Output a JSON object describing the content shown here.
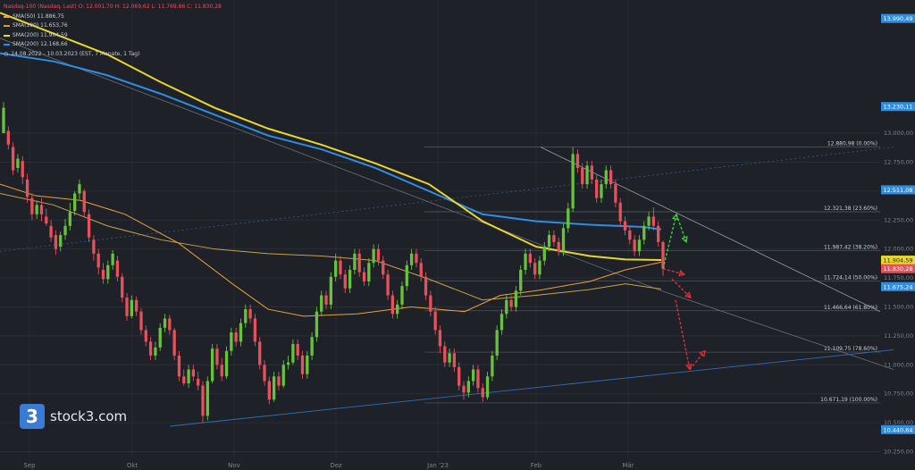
{
  "header": {
    "title": "Nasdaq-100 (Nasdaq, Last)  O: 12.001,70  H: 12.069,62  L: 11.769,86  C: 11.830,28",
    "legend": [
      {
        "label": "SMA(50)  11.886,75",
        "color": "#e9a23b"
      },
      {
        "label": "SMA(100)  11.653,76",
        "color": "#c8a24a"
      },
      {
        "label": "SMA(200)  11.904,59",
        "color": "#e8d72a"
      },
      {
        "label": "SMA(200)  12.168,66",
        "color": "#2f8de4"
      }
    ],
    "range": "24.08.2022 - 10.03.2023    (EST, 7 Monate, 1 Tag)"
  },
  "logo": {
    "mark": "3",
    "text": "stock3.com"
  },
  "chart_data": {
    "type": "candlestick",
    "x_ticks": [
      "Sep",
      "Okt",
      "Nov",
      "Dez",
      "Jan '23",
      "Feb",
      "Mär"
    ],
    "y_ticks": [
      "13.000,00",
      "12.750,00",
      "12.500,00",
      "12.250,00",
      "12.000,00",
      "11.750,00",
      "11.500,00",
      "11.250,00",
      "11.000,00",
      "10.750,00",
      "10.500,00",
      "10.250,00"
    ],
    "ylim": [
      10200,
      14150
    ],
    "price_labels": [
      {
        "text": "13.990,49",
        "value": 13990.49,
        "color": "#2f8de4"
      },
      {
        "text": "13.230,11",
        "value": 13230.11,
        "color": "#2f8de4"
      },
      {
        "text": "12.511,08",
        "value": 12511.08,
        "color": "#2f8de4"
      },
      {
        "text": "11.904,59",
        "value": 11904.59,
        "color": "#e8d72a"
      },
      {
        "text": "11.830,28",
        "value": 11830.28,
        "color": "#e9505b"
      },
      {
        "text": "11.675,24",
        "value": 11675.24,
        "color": "#2f8de4"
      },
      {
        "text": "10.440,64",
        "value": 10440.64,
        "color": "#2f8de4"
      }
    ],
    "fib_levels": [
      {
        "label": "12.880,98 (0.00%)",
        "value": 12880.98
      },
      {
        "label": "12.321,38 (23.60%)",
        "value": 12321.38
      },
      {
        "label": "11.987,42 (38.20%)",
        "value": 11987.42
      },
      {
        "label": "11.724,14 (50.00%)",
        "value": 11724.14
      },
      {
        "label": "11.466,64 (61.80%)",
        "value": 11466.64
      },
      {
        "label": "11.109,75 (78.60%)",
        "value": 11109.75
      },
      {
        "label": "10.671,19 (100.00%)",
        "value": 10671.19
      }
    ],
    "candles": [
      [
        13000,
        13220,
        13060,
        13270
      ],
      [
        13020,
        12900,
        13060,
        12860
      ],
      [
        12880,
        12680,
        12920,
        12640
      ],
      [
        12700,
        12780,
        12820,
        12660
      ],
      [
        12760,
        12620,
        12800,
        12560
      ],
      [
        12600,
        12450,
        12650,
        12400
      ],
      [
        12440,
        12300,
        12480,
        12250
      ],
      [
        12300,
        12380,
        12420,
        12260
      ],
      [
        12380,
        12300,
        12440,
        12240
      ],
      [
        12280,
        12220,
        12350,
        12200
      ],
      [
        12200,
        12100,
        12250,
        12060
      ],
      [
        12120,
        12000,
        12160,
        11950
      ],
      [
        12020,
        12120,
        12150,
        11980
      ],
      [
        12120,
        12200,
        12260,
        12080
      ],
      [
        12200,
        12320,
        12400,
        12160
      ],
      [
        12330,
        12480,
        12500,
        12290
      ],
      [
        12480,
        12560,
        12600,
        12430
      ],
      [
        12500,
        12320,
        12520,
        12280
      ],
      [
        12300,
        12100,
        12340,
        12060
      ],
      [
        12080,
        11960,
        12120,
        11900
      ],
      [
        11960,
        11840,
        12000,
        11780
      ],
      [
        11820,
        11740,
        11880,
        11700
      ],
      [
        11740,
        11860,
        11900,
        11700
      ],
      [
        11860,
        11960,
        11990,
        11820
      ],
      [
        11900,
        11760,
        11940,
        11720
      ],
      [
        11760,
        11580,
        11790,
        11540
      ],
      [
        11580,
        11420,
        11620,
        11380
      ],
      [
        11420,
        11560,
        11600,
        11400
      ],
      [
        11560,
        11460,
        11590,
        11420
      ],
      [
        11460,
        11300,
        11490,
        11260
      ],
      [
        11300,
        11200,
        11340,
        11160
      ],
      [
        11200,
        11080,
        11240,
        11040
      ],
      [
        11080,
        11150,
        11200,
        11040
      ],
      [
        11150,
        11320,
        11360,
        11120
      ],
      [
        11320,
        11400,
        11440,
        11280
      ],
      [
        11400,
        11300,
        11430,
        11260
      ],
      [
        11300,
        11080,
        11320,
        11040
      ],
      [
        11080,
        10900,
        11120,
        10860
      ],
      [
        10900,
        10840,
        10960,
        10820
      ],
      [
        10840,
        10960,
        11000,
        10800
      ],
      [
        10960,
        10900,
        11000,
        10860
      ],
      [
        10880,
        10820,
        10940,
        10780
      ],
      [
        10820,
        10560,
        10860,
        10500
      ],
      [
        10560,
        10860,
        10900,
        10520
      ],
      [
        10860,
        11140,
        11180,
        10840
      ],
      [
        11140,
        11000,
        11180,
        10960
      ],
      [
        11000,
        10900,
        11060,
        10860
      ],
      [
        10900,
        11120,
        11160,
        10880
      ],
      [
        11120,
        11280,
        11320,
        11080
      ],
      [
        11280,
        11200,
        11320,
        11160
      ],
      [
        11200,
        11360,
        11400,
        11160
      ],
      [
        11360,
        11480,
        11520,
        11320
      ],
      [
        11480,
        11400,
        11520,
        11360
      ],
      [
        11400,
        11200,
        11440,
        11160
      ],
      [
        11200,
        11000,
        11240,
        10960
      ],
      [
        11000,
        10860,
        11040,
        10820
      ],
      [
        10860,
        10700,
        10900,
        10660
      ],
      [
        10700,
        10900,
        10940,
        10680
      ],
      [
        10900,
        10820,
        10940,
        10780
      ],
      [
        10820,
        11000,
        11040,
        10800
      ],
      [
        11000,
        11020,
        11080,
        10960
      ],
      [
        11020,
        11180,
        11220,
        11000
      ],
      [
        11180,
        11080,
        11220,
        11040
      ],
      [
        11080,
        10920,
        11120,
        10880
      ],
      [
        10920,
        11080,
        11120,
        10880
      ],
      [
        11080,
        11240,
        11280,
        11040
      ],
      [
        11240,
        11460,
        11500,
        11200
      ],
      [
        11460,
        11600,
        11640,
        11420
      ],
      [
        11600,
        11520,
        11640,
        11480
      ],
      [
        11520,
        11760,
        11800,
        11480
      ],
      [
        11760,
        11900,
        11960,
        11720
      ],
      [
        11900,
        11780,
        11940,
        11740
      ],
      [
        11780,
        11660,
        11820,
        11620
      ],
      [
        11660,
        11820,
        11860,
        11620
      ],
      [
        11820,
        11960,
        12000,
        11780
      ],
      [
        11960,
        11800,
        12000,
        11760
      ],
      [
        11800,
        11720,
        11840,
        11680
      ],
      [
        11720,
        11880,
        11920,
        11680
      ],
      [
        11880,
        12000,
        12040,
        11840
      ],
      [
        12000,
        11900,
        12040,
        11860
      ],
      [
        11900,
        11780,
        11940,
        11740
      ],
      [
        11780,
        11600,
        11820,
        11560
      ],
      [
        11600,
        11440,
        11640,
        11400
      ],
      [
        11440,
        11520,
        11560,
        11400
      ],
      [
        11520,
        11680,
        11720,
        11480
      ],
      [
        11680,
        11860,
        11900,
        11640
      ],
      [
        11860,
        11960,
        12000,
        11820
      ],
      [
        11960,
        11880,
        12000,
        11840
      ],
      [
        11880,
        11760,
        11920,
        11720
      ],
      [
        11760,
        11600,
        11800,
        11560
      ],
      [
        11600,
        11460,
        11640,
        11420
      ],
      [
        11460,
        11300,
        11500,
        11260
      ],
      [
        11300,
        11160,
        11340,
        11100
      ],
      [
        11160,
        11020,
        11200,
        10980
      ],
      [
        11020,
        11100,
        11140,
        10980
      ],
      [
        11100,
        10980,
        11140,
        10940
      ],
      [
        10980,
        10820,
        11020,
        10780
      ],
      [
        10820,
        10760,
        10860,
        10700
      ],
      [
        10760,
        10860,
        10900,
        10720
      ],
      [
        10860,
        10960,
        11000,
        10820
      ],
      [
        10960,
        10800,
        11000,
        10760
      ],
      [
        10800,
        10720,
        10840,
        10680
      ],
      [
        10720,
        10900,
        10940,
        10700
      ],
      [
        10900,
        11080,
        11120,
        10860
      ],
      [
        11080,
        11300,
        11340,
        11040
      ],
      [
        11300,
        11440,
        11480,
        11260
      ],
      [
        11440,
        11560,
        11600,
        11400
      ],
      [
        11560,
        11500,
        11600,
        11460
      ],
      [
        11500,
        11640,
        11680,
        11460
      ],
      [
        11640,
        11820,
        11860,
        11600
      ],
      [
        11820,
        11960,
        12000,
        11780
      ],
      [
        11960,
        11880,
        12000,
        11840
      ],
      [
        11880,
        11780,
        11920,
        11740
      ],
      [
        11780,
        11900,
        11940,
        11740
      ],
      [
        11900,
        12020,
        12060,
        11860
      ],
      [
        12020,
        12120,
        12160,
        11980
      ],
      [
        12120,
        12060,
        12160,
        12020
      ],
      [
        12060,
        11980,
        12100,
        11940
      ],
      [
        11980,
        12180,
        12220,
        11940
      ],
      [
        12180,
        12350,
        12400,
        12140
      ],
      [
        12350,
        12820,
        12880,
        12320
      ],
      [
        12820,
        12700,
        12860,
        12660
      ],
      [
        12700,
        12560,
        12740,
        12520
      ],
      [
        12560,
        12720,
        12760,
        12520
      ],
      [
        12720,
        12600,
        12760,
        12560
      ],
      [
        12600,
        12440,
        12640,
        12400
      ],
      [
        12440,
        12560,
        12600,
        12400
      ],
      [
        12560,
        12680,
        12720,
        12520
      ],
      [
        12680,
        12560,
        12720,
        12520
      ],
      [
        12560,
        12400,
        12600,
        12360
      ],
      [
        12400,
        12240,
        12440,
        12200
      ],
      [
        12240,
        12160,
        12280,
        12120
      ],
      [
        12160,
        12080,
        12200,
        12040
      ],
      [
        12080,
        11980,
        12120,
        11940
      ],
      [
        11980,
        12080,
        12120,
        11940
      ],
      [
        12080,
        12200,
        12240,
        12040
      ],
      [
        12200,
        12280,
        12320,
        12160
      ],
      [
        12280,
        12200,
        12360,
        12160
      ],
      [
        12200,
        12060,
        12240,
        12020
      ],
      [
        12060,
        11830,
        12070,
        11770
      ]
    ],
    "sma50": [
      [
        0,
        12560
      ],
      [
        40,
        12460
      ],
      [
        90,
        12420
      ],
      [
        140,
        12300
      ],
      [
        200,
        12050
      ],
      [
        260,
        11700
      ],
      [
        300,
        11480
      ],
      [
        340,
        11420
      ],
      [
        400,
        11440
      ],
      [
        460,
        11500
      ],
      [
        520,
        11460
      ],
      [
        560,
        11600
      ],
      [
        600,
        11640
      ],
      [
        660,
        11720
      ],
      [
        700,
        11820
      ],
      [
        740,
        11887
      ]
    ],
    "sma100": [
      [
        0,
        12480
      ],
      [
        60,
        12380
      ],
      [
        120,
        12200
      ],
      [
        180,
        12080
      ],
      [
        240,
        12000
      ],
      [
        300,
        11960
      ],
      [
        360,
        11940
      ],
      [
        420,
        11900
      ],
      [
        480,
        11740
      ],
      [
        540,
        11560
      ],
      [
        600,
        11600
      ],
      [
        660,
        11650
      ],
      [
        700,
        11700
      ],
      [
        740,
        11654
      ]
    ],
    "sma200": [
      [
        0,
        14040
      ],
      [
        60,
        13860
      ],
      [
        120,
        13680
      ],
      [
        180,
        13440
      ],
      [
        240,
        13220
      ],
      [
        300,
        13040
      ],
      [
        360,
        12900
      ],
      [
        420,
        12740
      ],
      [
        480,
        12560
      ],
      [
        540,
        12240
      ],
      [
        600,
        12020
      ],
      [
        660,
        11940
      ],
      [
        700,
        11910
      ],
      [
        740,
        11905
      ]
    ],
    "sma200b": [
      [
        0,
        13690
      ],
      [
        60,
        13620
      ],
      [
        120,
        13500
      ],
      [
        180,
        13340
      ],
      [
        240,
        13160
      ],
      [
        300,
        12980
      ],
      [
        360,
        12860
      ],
      [
        420,
        12700
      ],
      [
        480,
        12500
      ],
      [
        540,
        12300
      ],
      [
        600,
        12240
      ],
      [
        660,
        12210
      ],
      [
        720,
        12190
      ],
      [
        740,
        12169
      ]
    ],
    "trend_high": [
      [
        0,
        13820
      ],
      [
        740,
        11640
      ],
      [
        1000,
        10960
      ]
    ],
    "trend_down": [
      [
        605,
        12880
      ],
      [
        985,
        11460
      ]
    ],
    "trend_low": [
      [
        190,
        10470
      ],
      [
        1000,
        11130
      ]
    ],
    "trend_mid": [
      [
        0,
        11980
      ],
      [
        1000,
        12880
      ]
    ]
  }
}
